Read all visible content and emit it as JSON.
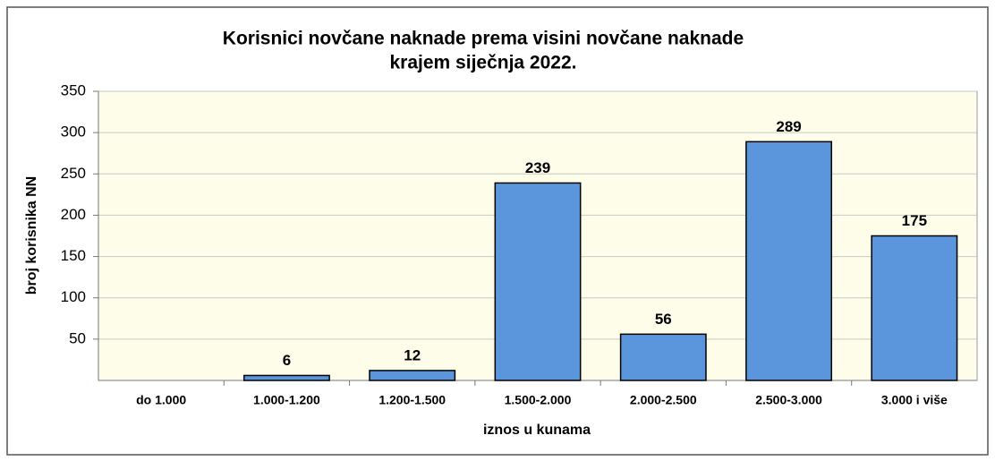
{
  "chart_data": {
    "type": "bar",
    "title": "Korisnici novčane naknade prema visini novčane naknade",
    "subtitle": "krajem siječnja 2022.",
    "x_label": "iznos u kunama",
    "y_label": "broj korisnika NN",
    "categories": [
      "do 1.000",
      "1.000-1.200",
      "1.200-1.500",
      "1.500-2.000",
      "2.000-2.500",
      "2.500-3.000",
      "3.000 i više"
    ],
    "values": [
      null,
      6,
      12,
      239,
      56,
      289,
      175
    ],
    "color": "#5b95dc",
    "ylim": [
      0,
      350
    ],
    "yticks": [
      50,
      100,
      150,
      200,
      250,
      300,
      350
    ],
    "grid": true
  }
}
